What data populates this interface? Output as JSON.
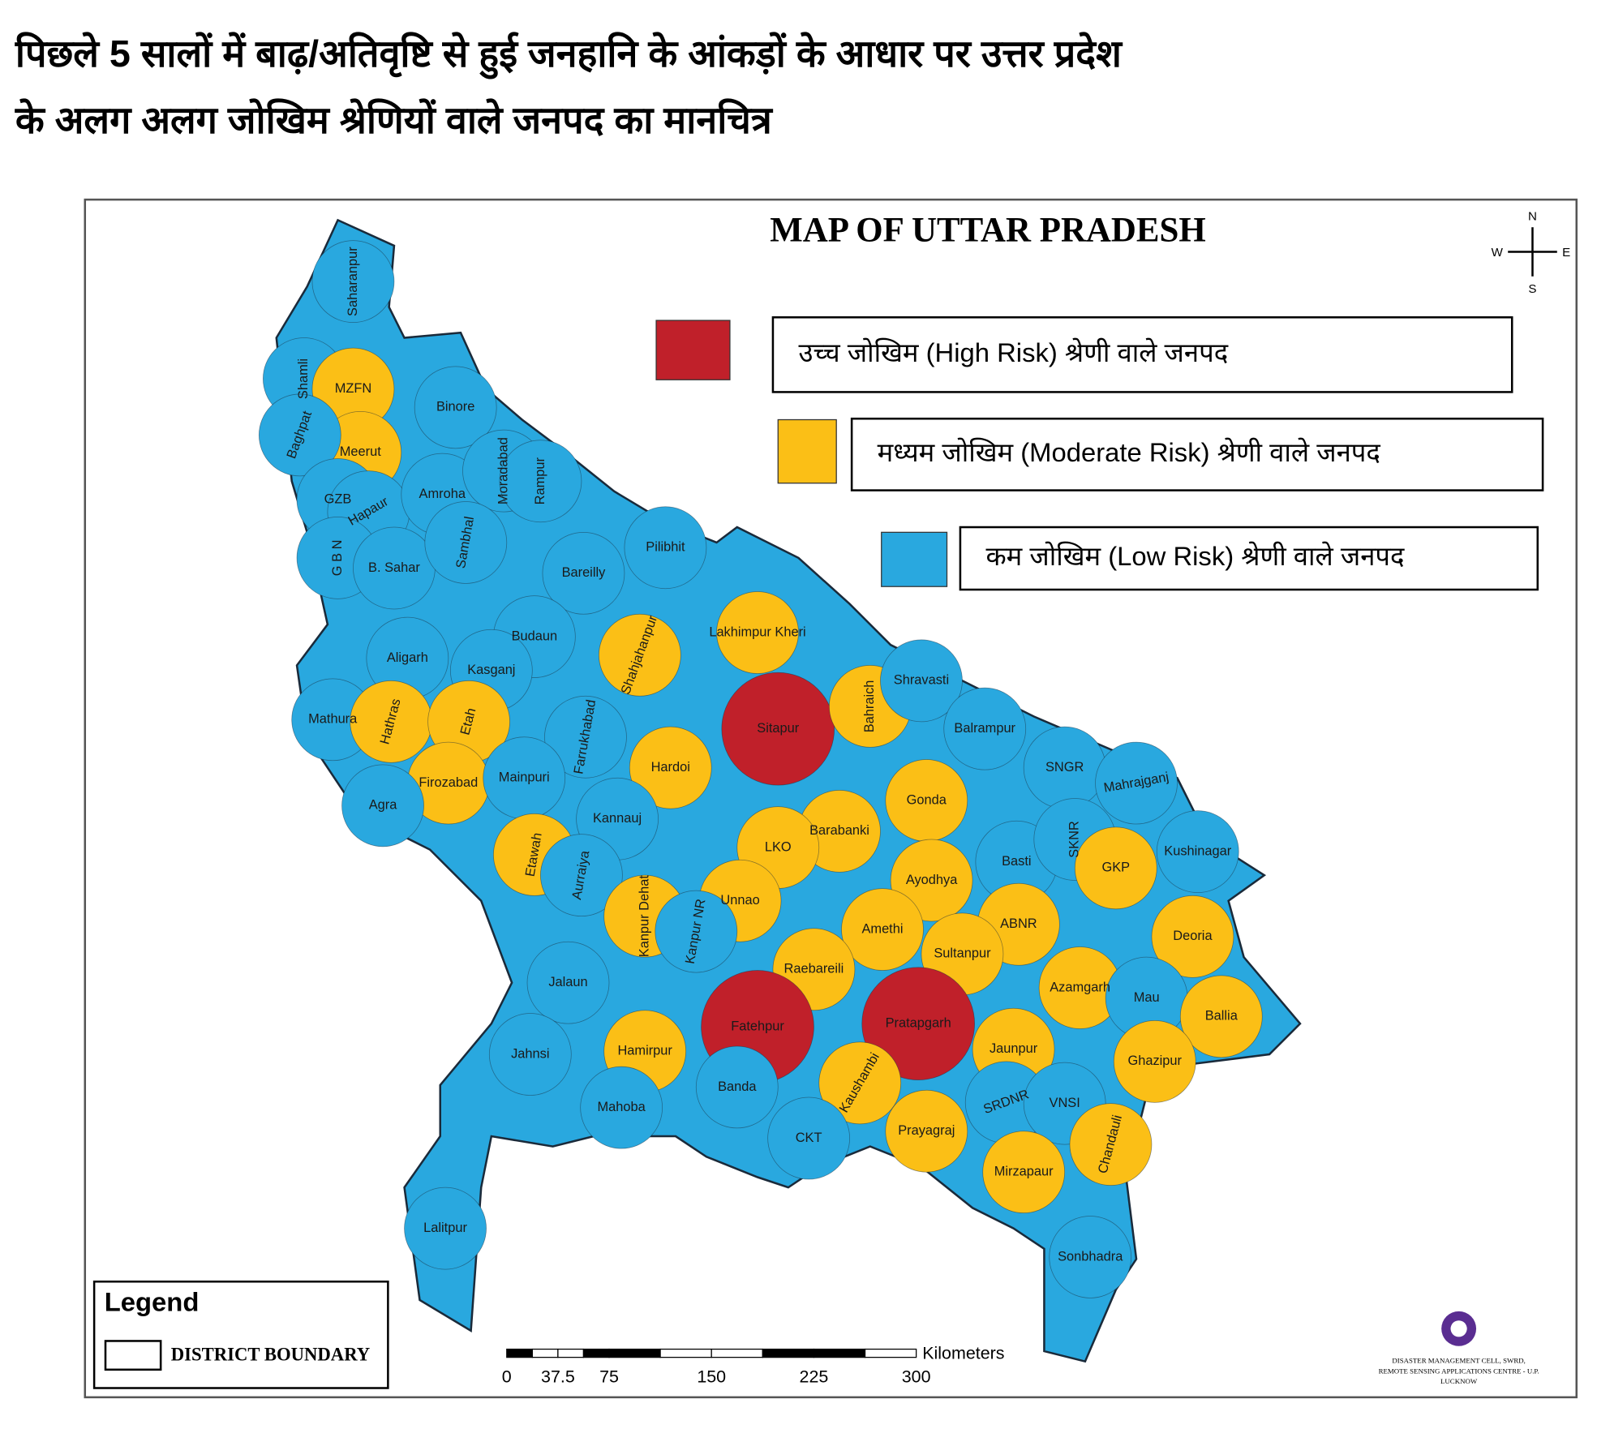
{
  "title": [
    "पिछले 5 सालों में बाढ़/अतिवृष्टि से हुई जनहानि के आंकड़ों के आधार पर उत्तर प्रदेश",
    "के अलग अलग जोखिम श्रेणियों वाले जनपद का मानचित्र"
  ],
  "map_title": "MAP OF UTTAR PRADESH",
  "compass": {
    "n": "N",
    "e": "E",
    "s": "S",
    "w": "W"
  },
  "risk_legend": [
    {
      "label": "उच्च जोखिम (High Risk) श्रेणी वाले जनपद",
      "color": "#c0202a"
    },
    {
      "label": "मध्यम जोखिम (Moderate Risk) श्रेणी वाले जनपद",
      "color": "#fbbf16"
    },
    {
      "label": "कम जोखिम (Low Risk) श्रेणी वाले जनपद",
      "color": "#29a8df"
    }
  ],
  "districts": [
    {
      "name": "Saharanpur",
      "color": "#29a8df"
    },
    {
      "name": "Shamli",
      "color": "#29a8df"
    },
    {
      "name": "MZFN",
      "color": "#fbbf16"
    },
    {
      "name": "Binore",
      "color": "#29a8df"
    },
    {
      "name": "Meerut",
      "color": "#fbbf16"
    },
    {
      "name": "Baghpat",
      "color": "#29a8df"
    },
    {
      "name": "GZB",
      "color": "#29a8df"
    },
    {
      "name": "Hapaur",
      "color": "#29a8df"
    },
    {
      "name": "Amroha",
      "color": "#29a8df"
    },
    {
      "name": "Moradabad",
      "color": "#29a8df"
    },
    {
      "name": "Rampur",
      "color": "#29a8df"
    },
    {
      "name": "G B N",
      "color": "#29a8df"
    },
    {
      "name": "B. Sahar",
      "color": "#29a8df"
    },
    {
      "name": "Sambhal",
      "color": "#29a8df"
    },
    {
      "name": "Bareilly",
      "color": "#29a8df"
    },
    {
      "name": "Pilibhit",
      "color": "#29a8df"
    },
    {
      "name": "Budaun",
      "color": "#29a8df"
    },
    {
      "name": "Aligarh",
      "color": "#29a8df"
    },
    {
      "name": "Kasganj",
      "color": "#29a8df"
    },
    {
      "name": "Shahjahanpur",
      "color": "#fbbf16"
    },
    {
      "name": "Lakhimpur Kheri",
      "color": "#fbbf16"
    },
    {
      "name": "Mathura",
      "color": "#29a8df"
    },
    {
      "name": "Hathras",
      "color": "#fbbf16"
    },
    {
      "name": "Etah",
      "color": "#fbbf16"
    },
    {
      "name": "Farrukhabad",
      "color": "#29a8df"
    },
    {
      "name": "Hardoi",
      "color": "#fbbf16"
    },
    {
      "name": "Sitapur",
      "color": "#c0202a"
    },
    {
      "name": "Bahraich",
      "color": "#fbbf16"
    },
    {
      "name": "Shravasti",
      "color": "#29a8df"
    },
    {
      "name": "Balrampur",
      "color": "#29a8df"
    },
    {
      "name": "Firozabad",
      "color": "#fbbf16"
    },
    {
      "name": "Mainpuri",
      "color": "#29a8df"
    },
    {
      "name": "Agra",
      "color": "#29a8df"
    },
    {
      "name": "Kannauj",
      "color": "#29a8df"
    },
    {
      "name": "SNGR",
      "color": "#29a8df"
    },
    {
      "name": "Mahrajganj",
      "color": "#29a8df"
    },
    {
      "name": "Gonda",
      "color": "#fbbf16"
    },
    {
      "name": "Barabanki",
      "color": "#fbbf16"
    },
    {
      "name": "LKO",
      "color": "#fbbf16"
    },
    {
      "name": "Etawah",
      "color": "#fbbf16"
    },
    {
      "name": "Basti",
      "color": "#29a8df"
    },
    {
      "name": "SKNR",
      "color": "#29a8df"
    },
    {
      "name": "GKP",
      "color": "#fbbf16"
    },
    {
      "name": "Kushinagar",
      "color": "#29a8df"
    },
    {
      "name": "Aurraiya",
      "color": "#29a8df"
    },
    {
      "name": "Kanpur Dehat",
      "color": "#fbbf16"
    },
    {
      "name": "Ayodhya",
      "color": "#fbbf16"
    },
    {
      "name": "Unnao",
      "color": "#fbbf16"
    },
    {
      "name": "Kanpur NR",
      "color": "#29a8df"
    },
    {
      "name": "ABNR",
      "color": "#fbbf16"
    },
    {
      "name": "Deoria",
      "color": "#fbbf16"
    },
    {
      "name": "Amethi",
      "color": "#fbbf16"
    },
    {
      "name": "Sultanpur",
      "color": "#fbbf16"
    },
    {
      "name": "Raebareili",
      "color": "#fbbf16"
    },
    {
      "name": "Jalaun",
      "color": "#29a8df"
    },
    {
      "name": "Azamgarh",
      "color": "#fbbf16"
    },
    {
      "name": "Mau",
      "color": "#29a8df"
    },
    {
      "name": "Ballia",
      "color": "#fbbf16"
    },
    {
      "name": "Fatehpur",
      "color": "#c0202a"
    },
    {
      "name": "Pratapgarh",
      "color": "#c0202a"
    },
    {
      "name": "Jaunpur",
      "color": "#fbbf16"
    },
    {
      "name": "Hamirpur",
      "color": "#fbbf16"
    },
    {
      "name": "Jahnsi",
      "color": "#29a8df"
    },
    {
      "name": "Ghazipur",
      "color": "#fbbf16"
    },
    {
      "name": "Banda",
      "color": "#29a8df"
    },
    {
      "name": "Kaushambi",
      "color": "#fbbf16"
    },
    {
      "name": "Mahoba",
      "color": "#29a8df"
    },
    {
      "name": "SRDNR",
      "color": "#29a8df"
    },
    {
      "name": "VNSI",
      "color": "#29a8df"
    },
    {
      "name": "Prayagraj",
      "color": "#fbbf16"
    },
    {
      "name": "CKT",
      "color": "#29a8df"
    },
    {
      "name": "Chandauli",
      "color": "#fbbf16"
    },
    {
      "name": "Mirzapaur",
      "color": "#fbbf16"
    },
    {
      "name": "Lalitpur",
      "color": "#29a8df"
    },
    {
      "name": "Sonbhadra",
      "color": "#29a8df"
    }
  ],
  "legend": {
    "title": "Legend",
    "item": "DISTRICT BOUNDARY"
  },
  "scale": {
    "ticks": [
      0,
      37.5,
      75,
      150,
      225,
      300
    ],
    "unit": "Kilometers"
  },
  "credit": [
    "DISASTER MANAGEMENT CELL, SWRD,",
    "REMOTE SENSING APPLICATIONS CENTRE - U.P.",
    "LUCKNOW"
  ]
}
